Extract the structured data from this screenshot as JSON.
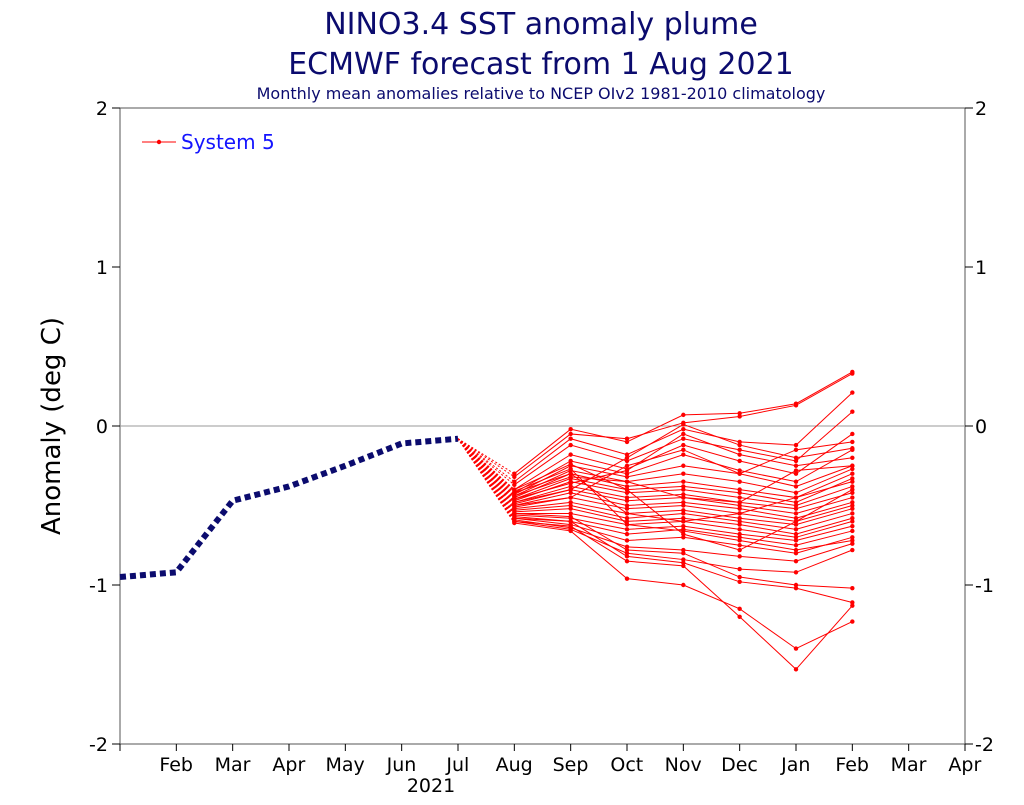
{
  "chart_data": {
    "type": "line",
    "title": "NINO3.4 SST anomaly plume",
    "subtitle": "ECMWF forecast from 1 Aug 2021",
    "subsubtitle": "Monthly mean anomalies relative to NCEP OIv2 1981-2010 climatology",
    "ylabel": "Anomaly (deg C)",
    "year_label": "2021",
    "ylim": [
      -2,
      2
    ],
    "yticks": [
      "2",
      "1",
      "0",
      "-1",
      "-2"
    ],
    "months": [
      "Feb",
      "Mar",
      "Apr",
      "May",
      "Jun",
      "Jul",
      "Aug",
      "Sep",
      "Oct",
      "Nov",
      "Dec",
      "Jan",
      "Feb",
      "Mar",
      "Apr"
    ],
    "legend": {
      "label": "System 5",
      "placement": "top-left"
    },
    "colors": {
      "observed": "#0b0b6e",
      "forecast": "#ff0000",
      "title": "#0b0b6e",
      "legend_text": "#1414ff"
    },
    "observed": {
      "x": [
        "Jan-2021",
        "Feb-2021",
        "Mar-2021",
        "Apr-2021",
        "May-2021",
        "Jun-2021",
        "Jul-2021"
      ],
      "values": [
        -0.95,
        -0.92,
        -0.47,
        -0.38,
        -0.25,
        -0.11,
        -0.08
      ]
    },
    "forecast": {
      "name": "System 5",
      "x": [
        "Aug-2021",
        "Sep-2021",
        "Oct-2021",
        "Nov-2021",
        "Dec-2021",
        "Jan-2022",
        "Feb-2022"
      ],
      "members": [
        [
          -0.3,
          -0.02,
          -0.1,
          0.07,
          0.08,
          0.14,
          0.34
        ],
        [
          -0.32,
          -0.05,
          -0.08,
          0.02,
          0.06,
          0.13,
          0.33
        ],
        [
          -0.35,
          -0.08,
          -0.18,
          -0.02,
          -0.1,
          -0.12,
          0.21
        ],
        [
          -0.37,
          -0.12,
          -0.22,
          -0.08,
          -0.15,
          -0.22,
          0.09
        ],
        [
          -0.4,
          -0.18,
          -0.27,
          -0.12,
          -0.22,
          -0.3,
          -0.05
        ],
        [
          -0.42,
          -0.22,
          -0.3,
          -0.18,
          -0.28,
          -0.35,
          -0.15
        ],
        [
          -0.43,
          -0.25,
          -0.32,
          -0.25,
          -0.3,
          -0.38,
          -0.25
        ],
        [
          -0.44,
          -0.28,
          -0.35,
          -0.3,
          -0.35,
          -0.42,
          -0.27
        ],
        [
          -0.45,
          -0.3,
          -0.38,
          -0.35,
          -0.4,
          -0.45,
          -0.3
        ],
        [
          -0.46,
          -0.33,
          -0.4,
          -0.38,
          -0.42,
          -0.48,
          -0.33
        ],
        [
          -0.47,
          -0.35,
          -0.42,
          -0.4,
          -0.45,
          -0.5,
          -0.38
        ],
        [
          -0.48,
          -0.38,
          -0.45,
          -0.43,
          -0.48,
          -0.52,
          -0.42
        ],
        [
          -0.49,
          -0.4,
          -0.47,
          -0.45,
          -0.5,
          -0.55,
          -0.45
        ],
        [
          -0.5,
          -0.42,
          -0.5,
          -0.48,
          -0.52,
          -0.58,
          -0.48
        ],
        [
          -0.51,
          -0.45,
          -0.52,
          -0.5,
          -0.55,
          -0.6,
          -0.5
        ],
        [
          -0.52,
          -0.48,
          -0.55,
          -0.53,
          -0.58,
          -0.62,
          -0.52
        ],
        [
          -0.53,
          -0.5,
          -0.58,
          -0.55,
          -0.6,
          -0.65,
          -0.55
        ],
        [
          -0.54,
          -0.52,
          -0.6,
          -0.58,
          -0.62,
          -0.68,
          -0.58
        ],
        [
          -0.55,
          -0.55,
          -0.62,
          -0.6,
          -0.65,
          -0.7,
          -0.6
        ],
        [
          -0.56,
          -0.58,
          -0.65,
          -0.63,
          -0.68,
          -0.72,
          -0.63
        ],
        [
          -0.57,
          -0.6,
          -0.68,
          -0.65,
          -0.7,
          -0.75,
          -0.66
        ],
        [
          -0.58,
          -0.62,
          -0.72,
          -0.7,
          -0.75,
          -0.8,
          -0.7
        ],
        [
          -0.59,
          -0.64,
          -0.76,
          -0.78,
          -0.82,
          -0.85,
          -0.74
        ],
        [
          -0.6,
          -0.65,
          -0.8,
          -0.84,
          -0.9,
          -0.92,
          -0.78
        ],
        [
          -0.61,
          -0.66,
          -0.96,
          -1.0,
          -1.15,
          -1.4,
          -1.23
        ],
        [
          -0.6,
          -0.63,
          -0.85,
          -0.88,
          -1.2,
          -1.53,
          -1.13
        ],
        [
          -0.58,
          -0.6,
          -0.82,
          -0.86,
          -0.98,
          -1.02,
          -1.11
        ],
        [
          -0.55,
          -0.57,
          -0.78,
          -0.8,
          -0.95,
          -1.0,
          -1.02
        ],
        [
          -0.5,
          -0.45,
          -0.25,
          -0.15,
          -0.3,
          -0.15,
          -0.1
        ],
        [
          -0.48,
          -0.4,
          -0.2,
          0.01,
          -0.12,
          -0.2,
          -0.14
        ],
        [
          -0.46,
          -0.36,
          -0.28,
          -0.05,
          -0.18,
          -0.25,
          -0.2
        ],
        [
          -0.44,
          -0.32,
          -0.35,
          -0.45,
          -0.48,
          -0.28,
          -0.25
        ],
        [
          -0.42,
          -0.3,
          -0.55,
          -0.6,
          -0.55,
          -0.45,
          -0.35
        ],
        [
          -0.41,
          -0.27,
          -0.62,
          -0.66,
          -0.72,
          -0.78,
          -0.72
        ],
        [
          -0.4,
          -0.24,
          -0.4,
          -0.68,
          -0.78,
          -0.6,
          -0.4
        ]
      ]
    }
  }
}
